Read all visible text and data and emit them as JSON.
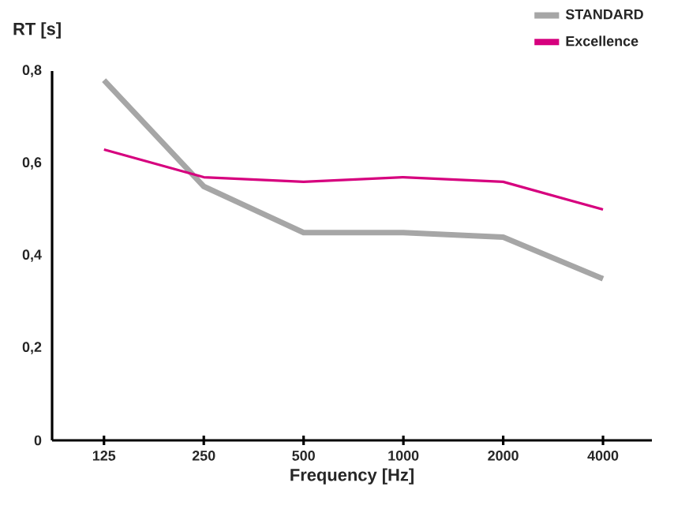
{
  "chart_data": {
    "type": "line",
    "xlabel": "Frequency [Hz]",
    "ylabel": "RT [s]",
    "categories": [
      "125",
      "250",
      "500",
      "1000",
      "2000",
      "4000"
    ],
    "series": [
      {
        "name": "STANDARD",
        "color": "#a6a6a6",
        "values": [
          0.78,
          0.55,
          0.45,
          0.45,
          0.44,
          0.35
        ]
      },
      {
        "name": "Excellence",
        "color": "#d6007e",
        "values": [
          0.63,
          0.57,
          0.56,
          0.57,
          0.56,
          0.5
        ]
      }
    ],
    "ylim": [
      0,
      0.8
    ],
    "yticks": [
      0,
      {
        "value": 0.2,
        "label": "0,2"
      },
      {
        "value": 0.4,
        "label": "0,4"
      },
      {
        "value": 0.6,
        "label": "0,6"
      },
      {
        "value": 0.8,
        "label": "0,8"
      }
    ],
    "grid": false,
    "legend": "top right",
    "marker": "none",
    "line_style": "solid"
  }
}
